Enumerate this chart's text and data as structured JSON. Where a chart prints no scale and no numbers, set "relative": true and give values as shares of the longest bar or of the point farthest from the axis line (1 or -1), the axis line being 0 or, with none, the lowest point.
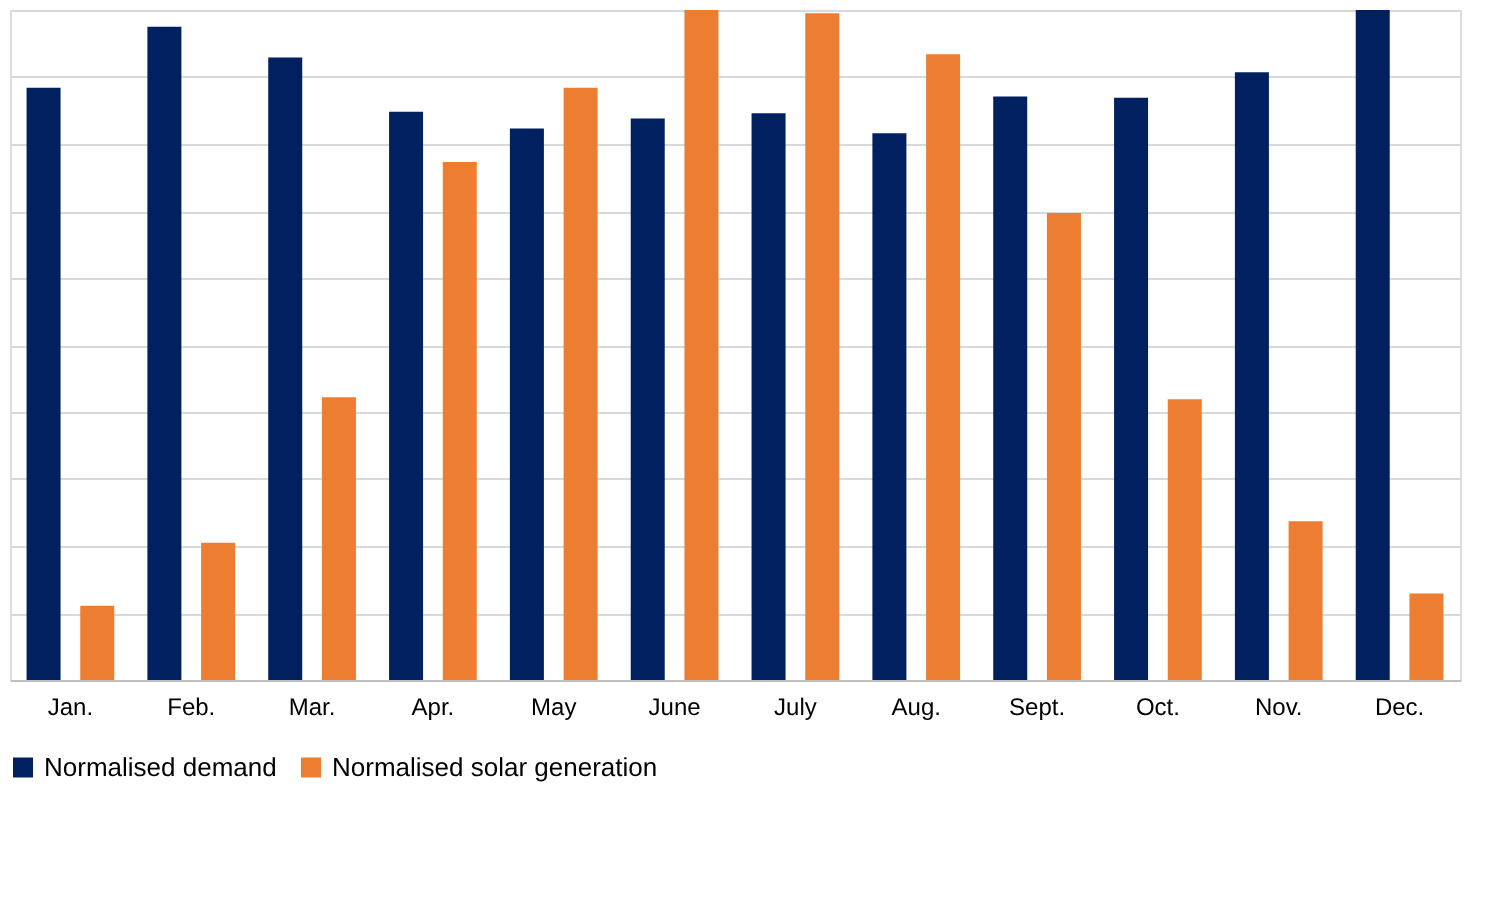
{
  "chart_data": {
    "type": "bar",
    "relative": true,
    "grid": "y",
    "legend": "bottom",
    "categories": [
      "Jan.",
      "Feb.",
      "Mar.",
      "Apr.",
      "May",
      "June",
      "July",
      "Aug.",
      "Sept.",
      "Oct.",
      "Nov.",
      "Dec."
    ],
    "series": [
      {
        "name": "Normalised demand",
        "color": "#002060",
        "values": [
          0.884,
          0.975,
          0.929,
          0.848,
          0.823,
          0.838,
          0.846,
          0.816,
          0.871,
          0.869,
          0.907,
          1.0
        ]
      },
      {
        "name": "Normalised solar generation",
        "color": "#ed7d31",
        "values": [
          0.111,
          0.205,
          0.422,
          0.773,
          0.884,
          1.0,
          0.995,
          0.934,
          0.697,
          0.419,
          0.237,
          0.129
        ]
      }
    ]
  }
}
